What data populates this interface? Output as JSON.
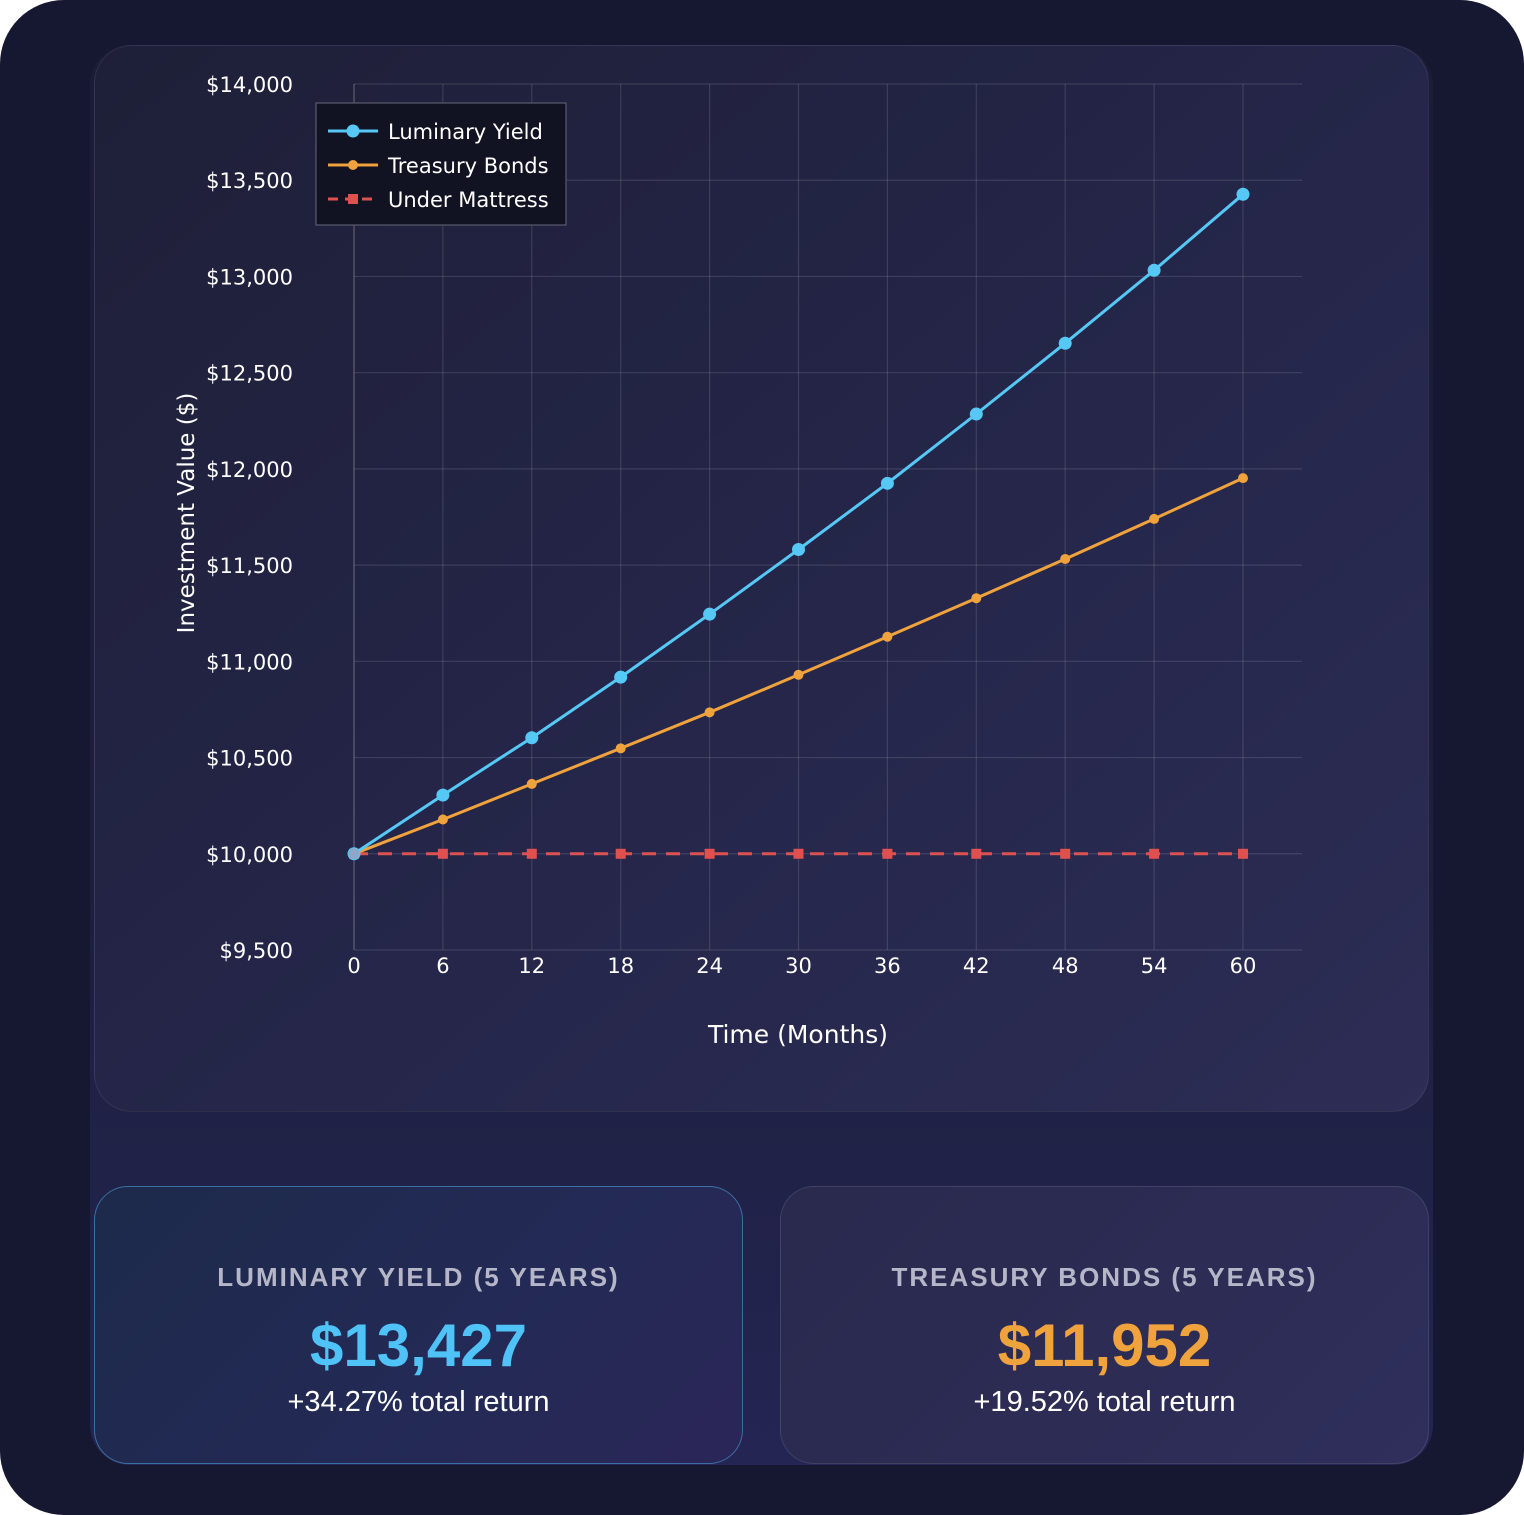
{
  "chart_data": {
    "type": "line",
    "title": "",
    "xlabel": "Time (Months)",
    "ylabel": "Investment Value ($)",
    "x": [
      0,
      6,
      12,
      18,
      24,
      30,
      36,
      42,
      48,
      54,
      60
    ],
    "x_ticks": [
      "0",
      "6",
      "12",
      "18",
      "24",
      "30",
      "36",
      "42",
      "48",
      "54",
      "60"
    ],
    "ylim": [
      9500,
      14000
    ],
    "y_ticks": [
      9500,
      10000,
      10500,
      11000,
      11500,
      12000,
      12500,
      13000,
      13500,
      14000
    ],
    "y_tick_labels": [
      "$9,500",
      "$10,000",
      "$10,500",
      "$11,000",
      "$11,500",
      "$12,000",
      "$12,500",
      "$13,000",
      "$13,500",
      "$14,000"
    ],
    "grid": true,
    "legend_position": "top-left",
    "series": [
      {
        "name": "Luminary Yield",
        "color": "#56c8f5",
        "marker": "circle",
        "dash": "solid",
        "values": [
          10000,
          10305,
          10603,
          10918,
          11245,
          11581,
          11925,
          12285,
          12653,
          13032,
          13427
        ]
      },
      {
        "name": "Treasury Bonds",
        "color": "#f0a23c",
        "marker": "circle",
        "dash": "solid",
        "values": [
          10000,
          10178,
          10363,
          10548,
          10735,
          10930,
          11128,
          11328,
          11532,
          11740,
          11952
        ]
      },
      {
        "name": "Under Mattress",
        "color": "#e0504f",
        "marker": "square",
        "dash": "dashed",
        "values": [
          10000,
          10000,
          10000,
          10000,
          10000,
          10000,
          10000,
          10000,
          10000,
          10000,
          10000
        ]
      }
    ]
  },
  "stats": {
    "luminary": {
      "label": "LUMINARY YIELD (5 YEARS)",
      "value": "$13,427",
      "subtext": "+34.27% total return",
      "color": "#4fc3f7"
    },
    "treasury": {
      "label": "TREASURY BONDS (5 YEARS)",
      "value": "$11,952",
      "subtext": "+19.52% total return",
      "color": "#f0a23c"
    }
  }
}
